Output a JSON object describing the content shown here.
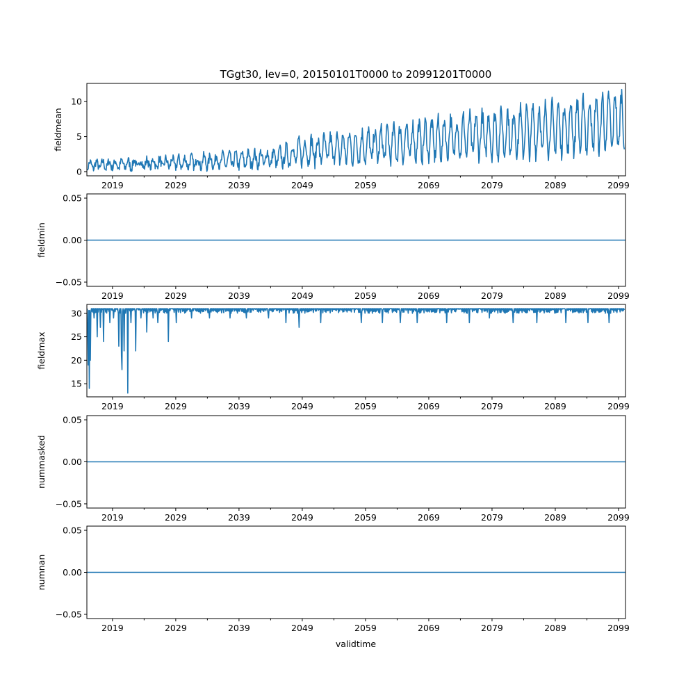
{
  "chart_data": {
    "type": "line",
    "title": "TGgt30, lev=0, 20150101T0000 to 20991201T0000",
    "xlabel": "validtime",
    "series_color": "#1f77b4",
    "xlim": [
      2014.95,
      2100.1
    ],
    "major_xticks": [
      2019,
      2029,
      2039,
      2049,
      2059,
      2069,
      2079,
      2089,
      2099
    ],
    "major_xtick_labels": [
      "2019",
      "2029",
      "2039",
      "2049",
      "2059",
      "2069",
      "2079",
      "2089",
      "2099"
    ],
    "minor_xticks": [
      2024,
      2034,
      2044,
      2054,
      2064,
      2074,
      2084,
      2094
    ],
    "panels": [
      {
        "name": "fieldmean",
        "ylabel": "fieldmean",
        "ylim": [
          -0.6,
          12.6
        ],
        "yticks": [
          0,
          5,
          10
        ],
        "ytick_labels": [
          "0",
          "5",
          "10"
        ],
        "series": {
          "kind": "seasonal",
          "start_year": 2015,
          "end_year": 2099,
          "trend_points": [
            [
              2015,
              1.1
            ],
            [
              2030,
              1.6
            ],
            [
              2045,
              2.4
            ],
            [
              2049,
              3.6
            ],
            [
              2060,
              4.6
            ],
            [
              2070,
              5.8
            ],
            [
              2080,
              6.8
            ],
            [
              2090,
              7.8
            ],
            [
              2099,
              9.0
            ]
          ],
          "amplitude_points": [
            [
              2015,
              1.3
            ],
            [
              2045,
              1.7
            ],
            [
              2050,
              2.2
            ],
            [
              2099,
              3.0
            ]
          ],
          "peak_max": 12.1
        }
      },
      {
        "name": "fieldmin",
        "ylabel": "fieldmin",
        "ylim": [
          -0.055,
          0.055
        ],
        "yticks": [
          -0.05,
          0.0,
          0.05
        ],
        "ytick_labels": [
          "−0.05",
          "0.00",
          "0.05"
        ],
        "series": {
          "kind": "constant",
          "value": 0.0
        }
      },
      {
        "name": "fieldmax",
        "ylabel": "fieldmax",
        "ylim": [
          12.2,
          31.9
        ],
        "yticks": [
          15,
          20,
          25,
          30
        ],
        "ytick_labels": [
          "15",
          "20",
          "25",
          "30"
        ],
        "series": {
          "kind": "saturated",
          "start_year": 2015,
          "end_year": 2099,
          "cap": 31.0,
          "floor": 30.0,
          "dips": [
            [
              2015.08,
              27
            ],
            [
              2015.2,
              19
            ],
            [
              2015.3,
              14
            ],
            [
              2015.5,
              20
            ],
            [
              2016.1,
              29
            ],
            [
              2016.6,
              25
            ],
            [
              2017.1,
              27
            ],
            [
              2017.6,
              24
            ],
            [
              2018.6,
              28
            ],
            [
              2019.2,
              29
            ],
            [
              2020.0,
              23
            ],
            [
              2020.4,
              21
            ],
            [
              2020.5,
              18
            ],
            [
              2020.8,
              22
            ],
            [
              2021.4,
              13
            ],
            [
              2021.9,
              28
            ],
            [
              2022.7,
              22
            ],
            [
              2023.5,
              29
            ],
            [
              2024.4,
              26
            ],
            [
              2025.4,
              29
            ],
            [
              2026.2,
              28
            ],
            [
              2027.8,
              24
            ],
            [
              2029.1,
              28
            ],
            [
              2031.5,
              29
            ],
            [
              2034.3,
              29
            ],
            [
              2037.6,
              29
            ],
            [
              2040.2,
              29
            ],
            [
              2043.7,
              29
            ],
            [
              2046.4,
              28
            ],
            [
              2048.5,
              27
            ],
            [
              2051.9,
              28
            ],
            [
              2058.3,
              28
            ],
            [
              2061.7,
              28
            ],
            [
              2064.5,
              28
            ],
            [
              2067.2,
              28
            ],
            [
              2071.8,
              28
            ],
            [
              2075.4,
              28
            ],
            [
              2078.6,
              29
            ],
            [
              2082.3,
              28
            ],
            [
              2086.1,
              28
            ],
            [
              2090.7,
              28
            ],
            [
              2094.2,
              28
            ],
            [
              2097.5,
              28
            ]
          ]
        }
      },
      {
        "name": "nummasked",
        "ylabel": "nummasked",
        "ylim": [
          -0.055,
          0.055
        ],
        "yticks": [
          -0.05,
          0.0,
          0.05
        ],
        "ytick_labels": [
          "−0.05",
          "0.00",
          "0.05"
        ],
        "series": {
          "kind": "constant",
          "value": 0.0
        }
      },
      {
        "name": "numnan",
        "ylabel": "numnan",
        "ylim": [
          -0.055,
          0.055
        ],
        "yticks": [
          -0.05,
          0.0,
          0.05
        ],
        "ytick_labels": [
          "−0.05",
          "0.00",
          "0.05"
        ],
        "series": {
          "kind": "constant",
          "value": 0.0
        }
      }
    ]
  }
}
